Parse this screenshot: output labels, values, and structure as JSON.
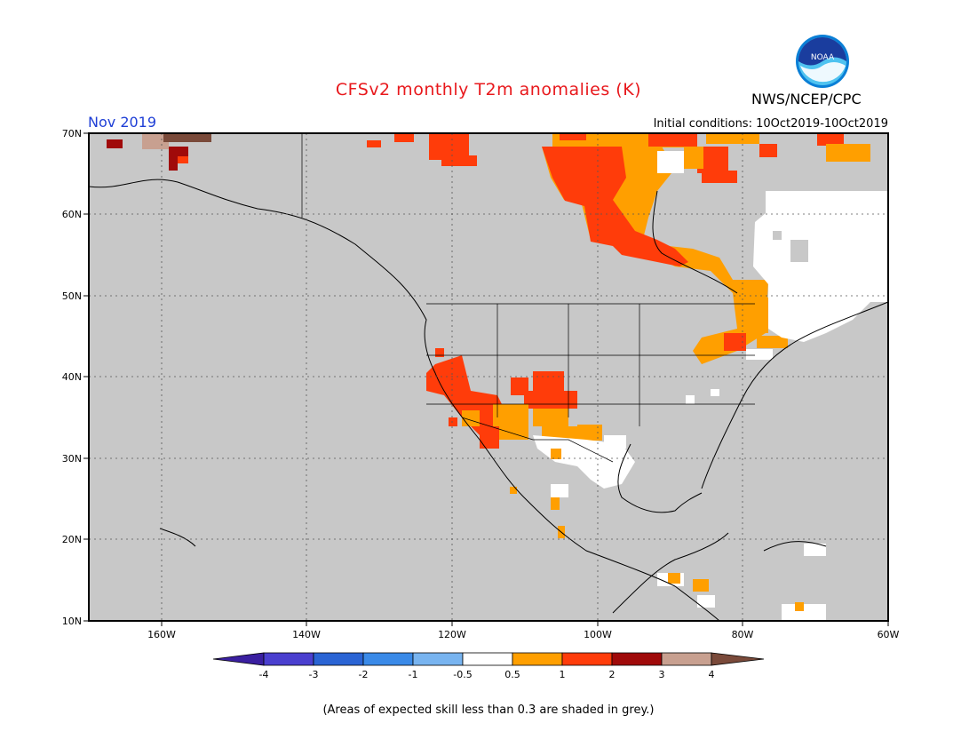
{
  "header": {
    "title": "CFSv2 monthly T2m anomalies (K)",
    "agency": "NWS/NCEP/CPC",
    "logo_text": "NOAA",
    "valid_month": "Nov 2019",
    "initial_conditions": "Initial conditions: 10Oct2019-10Oct2019"
  },
  "map": {
    "lat_ticks": [
      "70N",
      "60N",
      "50N",
      "40N",
      "30N",
      "20N",
      "10N"
    ],
    "lon_ticks": [
      "160W",
      "140W",
      "120W",
      "100W",
      "80W",
      "60W"
    ],
    "lat_range": [
      10,
      70
    ],
    "lon_range": [
      -170,
      -60
    ],
    "grid": "dotted",
    "background_color": "#c8c8c8"
  },
  "colorbar": {
    "labels": [
      "-4",
      "-3",
      "-2",
      "-1",
      "-0.5",
      "0.5",
      "1",
      "2",
      "3",
      "4"
    ],
    "colors": [
      "#3a1fa0",
      "#4a3fcf",
      "#2a64d4",
      "#3a8ae8",
      "#78b4f0",
      "#ffffff",
      "#ff9f00",
      "#ff3c0a",
      "#a00a0a",
      "#c8a090",
      "#7a4a3a"
    ]
  },
  "footnote": "(Areas of expected skill less than 0.3 are shaded in grey.)",
  "legend_colors": {
    "grey": "#c8c8c8",
    "white": "#ffffff",
    "orange": "#ff9f00",
    "red": "#ff3c0a",
    "darkred": "#a00a0a",
    "tan": "#c8a090",
    "brown": "#7a4a3a"
  }
}
